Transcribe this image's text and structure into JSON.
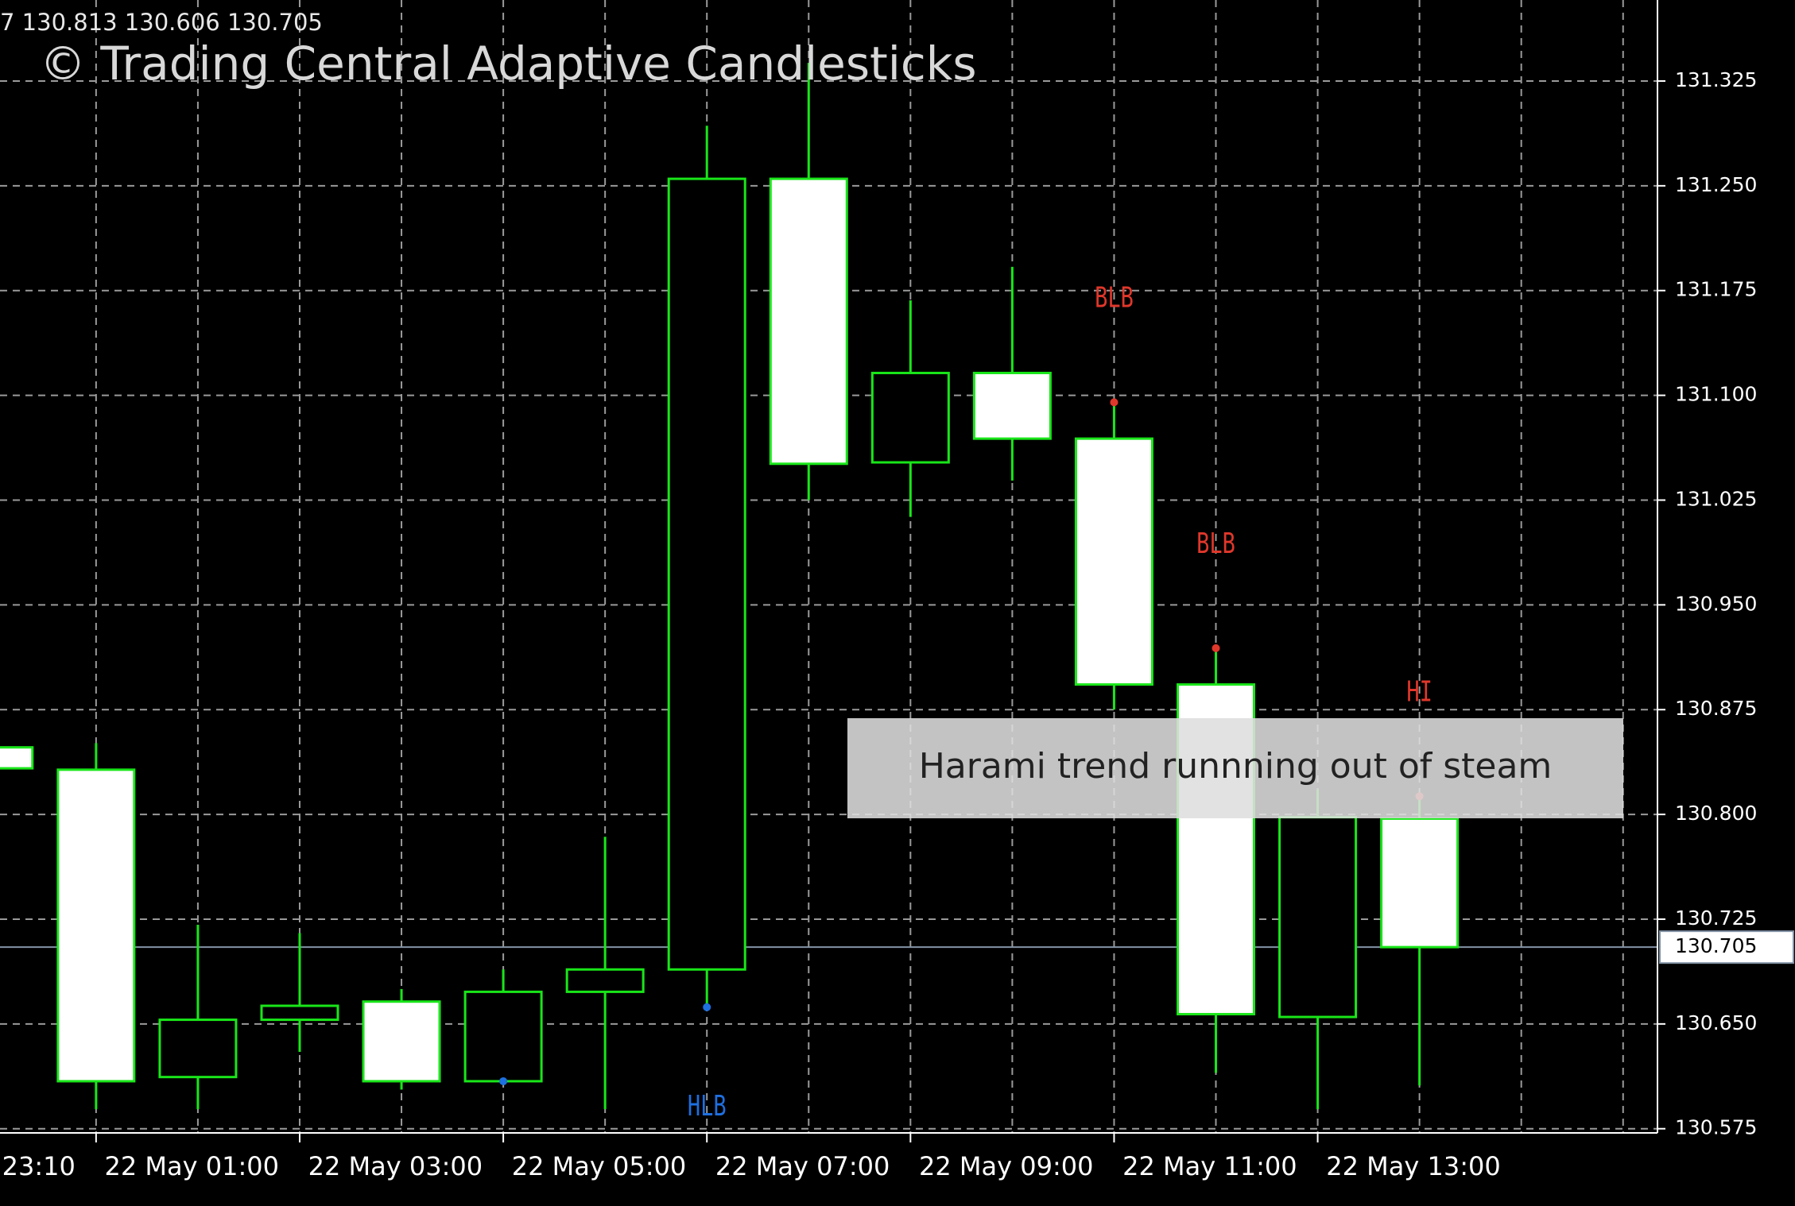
{
  "chart_data": {
    "type": "candlestick",
    "title": "© Trading Central Adaptive Candlesticks",
    "ohlc_header": "7 130.813 130.606 130.705",
    "clipped_x_label": "23:10",
    "categories": [
      null,
      "22 May 01:00",
      null,
      "22 May 03:00",
      null,
      "22 May 05:00",
      null,
      "22 May 07:00",
      null,
      "22 May 09:00",
      null,
      "22 May 11:00",
      null,
      "22 May 13:00",
      null
    ],
    "open": [
      130.848,
      130.832,
      130.612,
      130.653,
      130.666,
      130.609,
      130.673,
      130.689,
      131.255,
      131.052,
      131.116,
      131.069,
      130.893,
      130.655,
      130.797
    ],
    "high": [
      130.848,
      130.851,
      130.721,
      130.715,
      130.675,
      130.689,
      130.784,
      131.293,
      131.338,
      131.168,
      131.192,
      131.095,
      130.919,
      130.818,
      130.813
    ],
    "low": [
      130.833,
      130.589,
      130.589,
      130.63,
      130.603,
      130.607,
      130.589,
      130.662,
      131.025,
      131.013,
      131.039,
      130.875,
      130.615,
      130.589,
      130.606
    ],
    "close": [
      130.833,
      130.609,
      130.653,
      130.663,
      130.609,
      130.673,
      130.689,
      131.255,
      131.051,
      131.116,
      131.069,
      130.893,
      130.657,
      130.798,
      130.705
    ],
    "up_color": "#000000",
    "down_color": "#ffffff",
    "outline_color": "#19e619",
    "ylim": [
      130.572,
      131.383
    ],
    "yticks": [
      130.575,
      {
        "value": 130.65,
        "label": "130.650"
      },
      130.725,
      {
        "value": 130.8,
        "label": "130.800"
      },
      130.875,
      {
        "value": 130.95,
        "label": "130.950"
      },
      131.025,
      {
        "value": 131.1,
        "label": "131.100"
      },
      131.175,
      {
        "value": 131.25,
        "label": "131.250"
      },
      131.325
    ],
    "grid": true,
    "current_price": 130.705,
    "markers": [
      {
        "index": 5,
        "price": 130.609,
        "color": "#1e6fe0"
      },
      {
        "index": 7,
        "text": "HLB",
        "price": 130.662,
        "color": "#1e6fe0",
        "position": "below"
      },
      {
        "index": 11,
        "text": "BLB",
        "price": 131.095,
        "color": "#e0372b",
        "position": "above"
      },
      {
        "index": 12,
        "text": "BLB",
        "price": 130.919,
        "color": "#e0372b",
        "position": "above"
      },
      {
        "index": 14,
        "text": "HI",
        "price": 130.813,
        "color": "#e0372b",
        "position": "above"
      }
    ],
    "tooltip": "Harami trend runnning out of steam"
  }
}
